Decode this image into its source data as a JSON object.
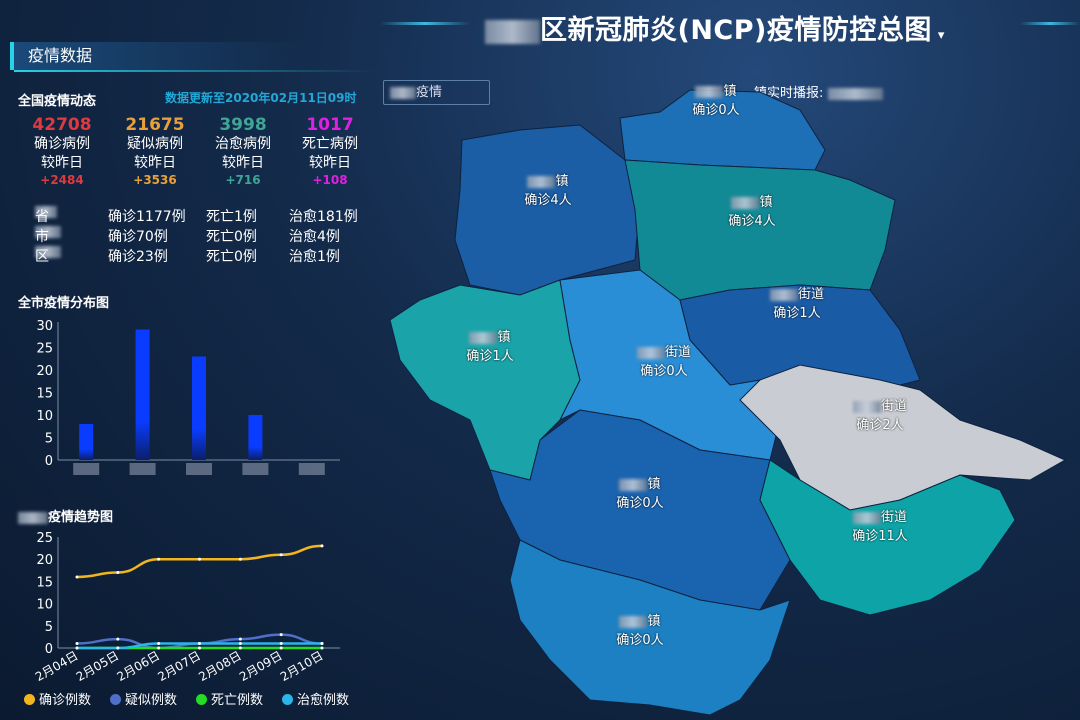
{
  "header": {
    "title": "区新冠肺炎(NCP)疫情防控总图",
    "dropdown_arrow": "▾"
  },
  "section": {
    "title": "疫情数据"
  },
  "national": {
    "title": "全国疫情动态",
    "updated": "数据更新至2020年02月11日09时",
    "compare_label": "较昨日",
    "stats": [
      {
        "value": "42708",
        "label": "确诊病例",
        "delta": "+2484",
        "color": "#e0393e"
      },
      {
        "value": "21675",
        "label": "疑似病例",
        "delta": "+3536",
        "color": "#e8a13a"
      },
      {
        "value": "3998",
        "label": "治愈病例",
        "delta": "+716",
        "color": "#3fa595"
      },
      {
        "value": "1017",
        "label": "死亡病例",
        "delta": "+108",
        "color": "#e020e0"
      }
    ],
    "regions": [
      {
        "suffix": "省",
        "confirmed": "确诊1177例",
        "deaths": "死亡1例",
        "cured": "治愈181例"
      },
      {
        "suffix": "市",
        "confirmed": "确诊70例",
        "deaths": "死亡0例",
        "cured": "治愈4例"
      },
      {
        "suffix": "区",
        "confirmed": "确诊23例",
        "deaths": "死亡0例",
        "cured": "治愈1例"
      }
    ]
  },
  "dropdown": {
    "label": "疫情"
  },
  "broadcast": {
    "label": "镇实时播报:"
  },
  "map": {
    "colors": {
      "teal": "#109a9f",
      "blue": "#1c65ad",
      "light": "#2b8fd6",
      "gray": "#c9cdd3"
    },
    "regions": [
      {
        "suffix": "镇",
        "cases": "确诊0人"
      },
      {
        "suffix": "镇",
        "cases": "确诊4人"
      },
      {
        "suffix": "镇",
        "cases": "确诊4人"
      },
      {
        "suffix": "镇",
        "cases": "确诊1人"
      },
      {
        "suffix": "街道",
        "cases": "确诊0人"
      },
      {
        "suffix": "街道",
        "cases": "确诊1人"
      },
      {
        "suffix": "街道",
        "cases": "确诊2人"
      },
      {
        "suffix": "镇",
        "cases": "确诊0人"
      },
      {
        "suffix": "街道",
        "cases": "确诊11人"
      },
      {
        "suffix": "镇",
        "cases": "确诊0人"
      }
    ]
  },
  "chart_data": [
    {
      "type": "bar",
      "title": "全市疫情分布图",
      "values": [
        8,
        29,
        23,
        10,
        0
      ],
      "ylim": [
        0,
        30
      ],
      "yticks": [
        0,
        5,
        10,
        15,
        20,
        25,
        30
      ],
      "color": "#0a3cff"
    },
    {
      "type": "line",
      "title": "疫情趋势图",
      "x": [
        "2月04日",
        "2月05日",
        "2月06日",
        "2月07日",
        "2月08日",
        "2月09日",
        "2月10日"
      ],
      "ylim": [
        0,
        25
      ],
      "yticks": [
        0,
        5,
        10,
        15,
        20,
        25
      ],
      "legend": "bottom",
      "series": [
        {
          "name": "确诊例数",
          "values": [
            16,
            17,
            20,
            20,
            20,
            21,
            23
          ],
          "color": "#f2b51c"
        },
        {
          "name": "疑似例数",
          "values": [
            1,
            2,
            0,
            1,
            2,
            3,
            1
          ],
          "color": "#4f6fc8"
        },
        {
          "name": "死亡例数",
          "values": [
            0,
            0,
            0,
            0,
            0,
            0,
            0
          ],
          "color": "#22dd22"
        },
        {
          "name": "治愈例数",
          "values": [
            0,
            0,
            1,
            1,
            1,
            1,
            1
          ],
          "color": "#29b6ea"
        }
      ]
    }
  ]
}
